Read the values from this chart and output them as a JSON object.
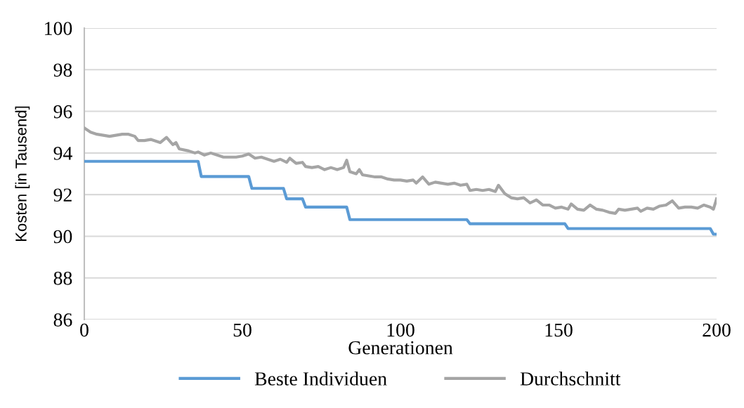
{
  "chart_data": {
    "type": "line",
    "xlabel": "Generationen",
    "ylabel": "Kosten [in Tausend]",
    "xlim": [
      0,
      200
    ],
    "xticks": [
      0,
      50,
      100,
      150,
      200
    ],
    "ylim": [
      86,
      100
    ],
    "yticks": [
      86,
      88,
      90,
      92,
      94,
      96,
      98,
      100
    ],
    "grid": "y",
    "legend": "bottom",
    "marker": "none",
    "line_style": "solid",
    "series": [
      {
        "name": "Beste Individuen",
        "color": "#5b9bd5",
        "x": [
          0,
          36,
          37,
          52,
          53,
          63,
          64,
          69,
          70,
          83,
          84,
          121,
          122,
          152,
          153,
          198,
          199,
          200
        ],
        "values": [
          93.6,
          93.6,
          92.87,
          92.87,
          92.3,
          92.3,
          91.8,
          91.8,
          91.4,
          91.4,
          90.8,
          90.8,
          90.6,
          90.6,
          90.37,
          90.37,
          90.1,
          90.1
        ]
      },
      {
        "name": "Durchschnitt",
        "color": "#a5a5a5",
        "x": [
          0,
          2,
          4,
          6,
          8,
          10,
          12,
          14,
          16,
          17,
          19,
          21,
          24,
          26,
          28,
          29,
          30,
          33,
          35,
          36,
          38,
          40,
          42,
          44,
          46,
          48,
          50,
          52,
          54,
          56,
          58,
          60,
          62,
          64,
          65,
          67,
          69,
          70,
          72,
          74,
          76,
          78,
          80,
          82,
          83,
          84,
          86,
          87,
          88,
          90,
          92,
          94,
          96,
          98,
          100,
          102,
          104,
          105,
          107,
          109,
          111,
          113,
          115,
          117,
          119,
          121,
          122,
          124,
          126,
          128,
          130,
          131,
          133,
          135,
          137,
          139,
          141,
          143,
          145,
          147,
          149,
          151,
          153,
          154,
          156,
          158,
          160,
          162,
          164,
          166,
          168,
          169,
          171,
          173,
          175,
          176,
          178,
          180,
          182,
          184,
          186,
          188,
          190,
          192,
          194,
          196,
          198,
          199,
          200
        ],
        "values": [
          95.2,
          95.0,
          94.9,
          94.85,
          94.8,
          94.85,
          94.9,
          94.9,
          94.8,
          94.6,
          94.6,
          94.65,
          94.5,
          94.75,
          94.4,
          94.5,
          94.2,
          94.1,
          94.0,
          94.05,
          93.9,
          94.0,
          93.9,
          93.8,
          93.8,
          93.8,
          93.85,
          93.95,
          93.75,
          93.8,
          93.7,
          93.6,
          93.7,
          93.55,
          93.75,
          93.5,
          93.55,
          93.35,
          93.3,
          93.35,
          93.2,
          93.3,
          93.2,
          93.3,
          93.65,
          93.1,
          93.0,
          93.2,
          92.95,
          92.9,
          92.85,
          92.85,
          92.75,
          92.7,
          92.7,
          92.65,
          92.7,
          92.55,
          92.85,
          92.5,
          92.6,
          92.55,
          92.5,
          92.55,
          92.45,
          92.5,
          92.2,
          92.25,
          92.2,
          92.25,
          92.15,
          92.45,
          92.05,
          91.85,
          91.8,
          91.85,
          91.6,
          91.75,
          91.5,
          91.5,
          91.35,
          91.4,
          91.3,
          91.55,
          91.3,
          91.25,
          91.5,
          91.3,
          91.25,
          91.15,
          91.1,
          91.3,
          91.25,
          91.3,
          91.35,
          91.2,
          91.35,
          91.3,
          91.45,
          91.5,
          91.7,
          91.35,
          91.4,
          91.4,
          91.35,
          91.5,
          91.4,
          91.3,
          91.8
        ]
      }
    ]
  }
}
